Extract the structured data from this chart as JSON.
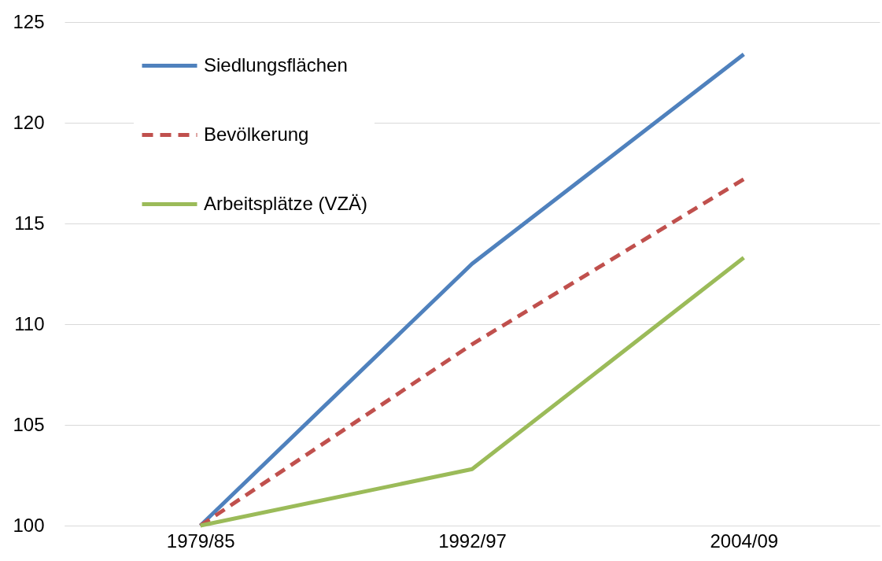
{
  "chart_data": {
    "type": "line",
    "categories": [
      "1979/85",
      "1992/97",
      "2004/09"
    ],
    "series": [
      {
        "name": "Siedlungsflächen",
        "color": "#4f81bd",
        "values": [
          100,
          113,
          123.4
        ]
      },
      {
        "name": "Bevölkerung",
        "color": "#c0504d",
        "line_style": "dashed",
        "values": [
          100,
          109,
          117.2
        ]
      },
      {
        "name": "Arbeitsplätze (VZÄ)",
        "color": "#9bbb59",
        "values": [
          100,
          102.8,
          113.3
        ]
      }
    ],
    "ylim": [
      100,
      125
    ],
    "yticks": [
      100,
      105,
      110,
      115,
      120,
      125
    ],
    "grid": "y",
    "legend": "top left",
    "line_style": "solid",
    "marker": "none"
  }
}
